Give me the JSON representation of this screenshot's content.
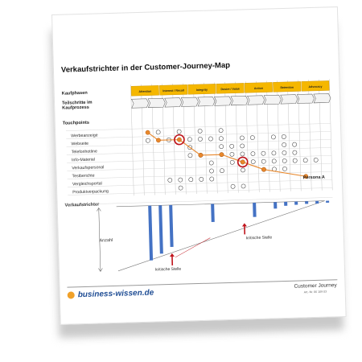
{
  "document": {
    "title": "Verkaufstrichter in der Customer-Journey-Map",
    "label_phases": "Kaufphasen",
    "label_steps_line1": "Teilschritte im",
    "label_steps_line2": "Kaufprozess",
    "label_touchpoints": "Touchpoints",
    "label_funnel": "Verkaufstrichter",
    "axis_label": "Anzahl",
    "critical_left": "kritische Stelle",
    "critical_right": "kritische Stelle",
    "persona_label": "Persona A",
    "brand": "business-wissen.de",
    "footer_title": "Customer Journey",
    "footer_artno": "Art.-Nr. 06 109 03"
  },
  "phases": [
    "Attention",
    "Interest / Recall",
    "Integrity",
    "Desire / Value",
    "Action",
    "Retention",
    "Advocacy"
  ],
  "touchpoints": [
    "Werbeanzeige",
    "Webseite",
    "Telefonhotline",
    "Info-Material",
    "Verkaufspersonal",
    "Testberichte",
    "Vergleichsportal",
    "Produktverpackung"
  ],
  "dots": [
    [
      2,
      4,
      6,
      8
    ],
    [
      1,
      3,
      5,
      6,
      7,
      8,
      10,
      11,
      13,
      14
    ],
    [
      5,
      8,
      9,
      10,
      14,
      15
    ],
    [
      5,
      6,
      8,
      9,
      10,
      11,
      12,
      13,
      14,
      15
    ],
    [
      7,
      9,
      10,
      11,
      12,
      13,
      14,
      15,
      16,
      17
    ],
    [
      7,
      8,
      10,
      12,
      13,
      14
    ],
    [
      3,
      4,
      5,
      6,
      7
    ],
    [
      4,
      9,
      10
    ]
  ],
  "persona_path": [
    [
      1,
      0
    ],
    [
      2,
      1
    ],
    [
      4,
      1
    ],
    [
      6,
      3
    ],
    [
      8,
      3
    ],
    [
      10,
      4
    ],
    [
      12,
      5
    ],
    [
      16,
      6
    ]
  ],
  "highlight_circles": [
    [
      4,
      1
    ],
    [
      10,
      4
    ]
  ],
  "funnel_bars": [
    [
      1,
      0.85
    ],
    [
      2,
      0.75
    ],
    [
      3,
      0.65
    ],
    [
      7,
      0.28
    ],
    [
      11,
      0.22
    ],
    [
      13,
      0.1
    ],
    [
      14,
      0.06
    ],
    [
      15,
      0.05
    ],
    [
      16,
      0.04
    ],
    [
      17,
      0.04
    ],
    [
      18,
      0.03
    ]
  ],
  "colors": {
    "phase_fill": "#f5b700",
    "persona_line": "#e8872b",
    "highlight": "#c0141c",
    "bar": "#4472c4",
    "brand": "#1f4d94",
    "brand_dot": "#f0a12a"
  }
}
